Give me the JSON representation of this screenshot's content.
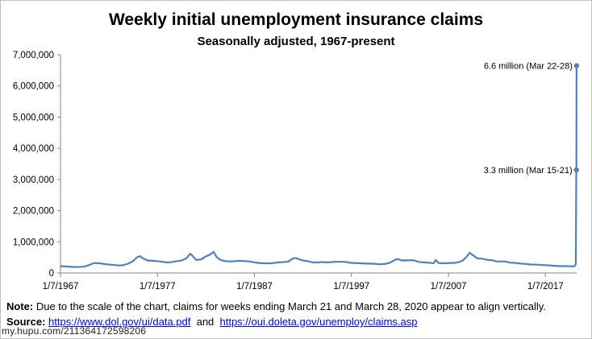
{
  "chart_data": {
    "type": "line",
    "title": "Weekly initial unemployment insurance claims",
    "subtitle": "Seasonally adjusted, 1967-present",
    "xlabel": "",
    "ylabel": "",
    "xlim": [
      1967.02,
      2020.24
    ],
    "ylim": [
      0,
      7000000
    ],
    "grid": false,
    "legend": "none",
    "line_color": "#4f81bd",
    "y_ticks": [
      {
        "value": 0,
        "label": "0"
      },
      {
        "value": 1000000,
        "label": "1,000,000"
      },
      {
        "value": 2000000,
        "label": "2,000,000"
      },
      {
        "value": 3000000,
        "label": "3,000,000"
      },
      {
        "value": 4000000,
        "label": "4,000,000"
      },
      {
        "value": 5000000,
        "label": "5,000,000"
      },
      {
        "value": 6000000,
        "label": "6,000,000"
      },
      {
        "value": 7000000,
        "label": "7,000,000"
      }
    ],
    "x_ticks": [
      {
        "value": 1967.02,
        "label": "1/7/1967"
      },
      {
        "value": 1977.02,
        "label": "1/7/1977"
      },
      {
        "value": 1987.02,
        "label": "1/7/1987"
      },
      {
        "value": 1997.02,
        "label": "1/7/1997"
      },
      {
        "value": 2007.02,
        "label": "1/7/2007"
      },
      {
        "value": 2017.02,
        "label": "1/7/2017"
      }
    ],
    "series": [
      {
        "x": [
          1967.0,
          1967.5,
          1968.0,
          1968.5,
          1969.0,
          1969.5,
          1970.0,
          1970.5,
          1971.0,
          1971.5,
          1972.0,
          1972.5,
          1973.0,
          1973.5,
          1974.0,
          1974.5,
          1974.9,
          1975.2,
          1975.5,
          1976.0,
          1976.5,
          1977.0,
          1977.5,
          1978.0,
          1978.5,
          1979.0,
          1979.5,
          1980.0,
          1980.4,
          1980.6,
          1981.0,
          1981.5,
          1982.0,
          1982.5,
          1982.8,
          1983.1,
          1983.5,
          1984.0,
          1984.5,
          1985.0,
          1985.5,
          1986.0,
          1986.5,
          1987.0,
          1987.5,
          1988.0,
          1988.5,
          1989.0,
          1989.5,
          1990.0,
          1990.5,
          1991.0,
          1991.3,
          1991.6,
          1992.0,
          1992.5,
          1993.0,
          1993.5,
          1994.0,
          1994.5,
          1995.0,
          1995.5,
          1996.0,
          1996.5,
          1997.0,
          1997.5,
          1998.0,
          1998.5,
          1999.0,
          1999.5,
          2000.0,
          2000.5,
          2001.0,
          2001.5,
          2001.8,
          2002.2,
          2002.5,
          2003.0,
          2003.5,
          2004.0,
          2004.5,
          2005.0,
          2005.5,
          2005.7,
          2006.0,
          2006.5,
          2007.0,
          2007.5,
          2008.0,
          2008.5,
          2008.9,
          2009.2,
          2009.5,
          2010.0,
          2010.5,
          2011.0,
          2011.5,
          2012.0,
          2012.5,
          2012.9,
          2013.2,
          2013.5,
          2014.0,
          2014.5,
          2015.0,
          2015.5,
          2016.0,
          2016.5,
          2017.0,
          2017.5,
          2018.0,
          2018.5,
          2019.0,
          2019.5,
          2020.0,
          2020.15,
          2020.2,
          2020.21,
          2020.23
        ],
        "values": [
          220000,
          210000,
          200000,
          190000,
          195000,
          205000,
          260000,
          320000,
          310000,
          290000,
          270000,
          260000,
          240000,
          250000,
          300000,
          380000,
          500000,
          540000,
          470000,
          400000,
          390000,
          380000,
          360000,
          340000,
          350000,
          380000,
          400000,
          470000,
          620000,
          560000,
          420000,
          430000,
          530000,
          600000,
          680000,
          520000,
          420000,
          380000,
          370000,
          380000,
          390000,
          380000,
          370000,
          340000,
          320000,
          310000,
          310000,
          320000,
          340000,
          350000,
          360000,
          470000,
          480000,
          440000,
          400000,
          380000,
          340000,
          340000,
          350000,
          340000,
          350000,
          360000,
          360000,
          350000,
          320000,
          320000,
          310000,
          300000,
          300000,
          290000,
          280000,
          290000,
          330000,
          420000,
          450000,
          400000,
          400000,
          410000,
          400000,
          350000,
          340000,
          330000,
          310000,
          420000,
          320000,
          310000,
          320000,
          320000,
          340000,
          400000,
          520000,
          650000,
          580000,
          470000,
          460000,
          420000,
          410000,
          370000,
          370000,
          370000,
          340000,
          330000,
          320000,
          300000,
          290000,
          270000,
          270000,
          260000,
          250000,
          240000,
          230000,
          220000,
          220000,
          215000,
          211000,
          282000,
          3307000,
          3307000,
          6648000
        ]
      }
    ],
    "annotations": [
      {
        "x": 2020.23,
        "y": 6648000,
        "label": "6.6 million (Mar 22-28)"
      },
      {
        "x": 2020.21,
        "y": 3307000,
        "label": "3.3 million (Mar 15-21)"
      }
    ]
  },
  "footer": {
    "note_bold": "Note:",
    "note_text": " Due to the scale of the chart, claims for weeks ending March 21 and March 28, 2020  appear to align vertically.",
    "source_bold": "Source:",
    "source_link1": "https://www.dol.gov/ui/data.pdf",
    "source_and": "  and  ",
    "source_link2": "https://oui.doleta.gov/unemploy/claims.asp",
    "watermark": "my.hupu.com/211364172598206"
  }
}
